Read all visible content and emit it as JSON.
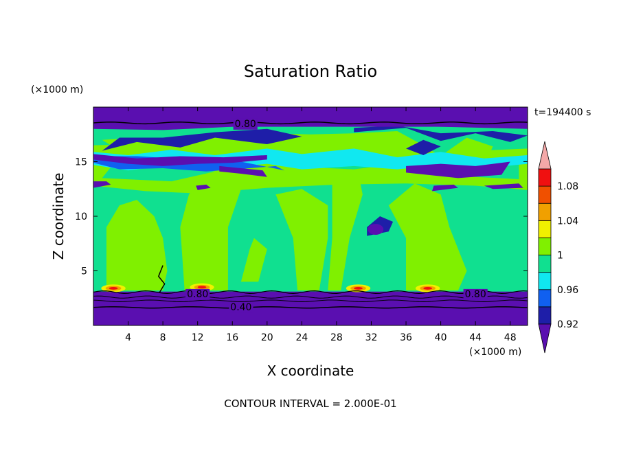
{
  "chart_data": {
    "type": "heatmap",
    "title": "Saturation Ratio",
    "xlabel": "X coordinate",
    "ylabel": "Z coordinate",
    "x_unit": "(×1000 m)",
    "y_unit": "(×1000 m)",
    "time_label": "t=194400 s",
    "footer": "CONTOUR INTERVAL = 2.000E-01",
    "xlim": [
      0,
      50
    ],
    "ylim": [
      0,
      20
    ],
    "x_ticks": [
      "4",
      "8",
      "12",
      "16",
      "20",
      "24",
      "28",
      "32",
      "36",
      "40",
      "44",
      "48"
    ],
    "x_tick_values": [
      4,
      8,
      12,
      16,
      20,
      24,
      28,
      32,
      36,
      40,
      44,
      48
    ],
    "y_ticks": [
      "5",
      "10",
      "15"
    ],
    "y_tick_values": [
      5,
      10,
      15
    ],
    "colorbar": {
      "levels": [
        0.92,
        0.94,
        0.96,
        0.98,
        1.0,
        1.02,
        1.04,
        1.06,
        1.08,
        1.1
      ],
      "labels": [
        "0.92",
        "0.96",
        "1",
        "1.04",
        "1.08"
      ],
      "label_values": [
        0.92,
        0.96,
        1.0,
        1.04,
        1.08
      ],
      "colors": [
        "#5a0fb0",
        "#1e1ea8",
        "#1060f0",
        "#10e8f0",
        "#10e090",
        "#80f000",
        "#f0f000",
        "#f0a000",
        "#f05000",
        "#f01010",
        "#f4a8a8"
      ]
    },
    "contour_labels": [
      {
        "text": "0.80",
        "x": 17.5,
        "z": 18.5
      },
      {
        "text": "0.80",
        "x": 12,
        "z": 2.9
      },
      {
        "text": "0.40",
        "x": 17,
        "z": 1.7
      },
      {
        "text": "0.80",
        "x": 44,
        "z": 2.9
      }
    ]
  }
}
